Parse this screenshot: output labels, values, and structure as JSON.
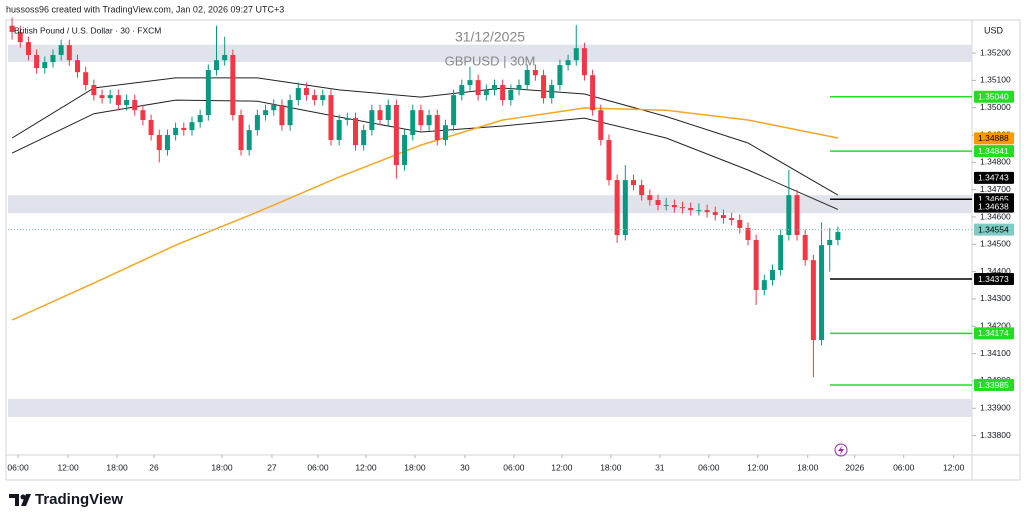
{
  "header": {
    "caption": "hussoss96 created with TradingView.com, Jan 02, 2026 09:27 UTC+3"
  },
  "chart_data": {
    "type": "candlestick",
    "title": "31/12/2025",
    "subtitle": "GBPUSD | 30M",
    "symbol": "British Pound / U.S. Dollar · 30 · FXCM",
    "currency": "USD",
    "up_color": "#089981",
    "down_color": "#f23645",
    "x": [
      0,
      1,
      2,
      3,
      4,
      5,
      6,
      7,
      8,
      9,
      10,
      11,
      12,
      13,
      14,
      15,
      16,
      17,
      18,
      19,
      20,
      21,
      22,
      23,
      24,
      25,
      26,
      27,
      28,
      29,
      30,
      31,
      32,
      33,
      34,
      35,
      36,
      37,
      38,
      39,
      40,
      41,
      42,
      43,
      44,
      45,
      46,
      47,
      48,
      49,
      50,
      51,
      52,
      53,
      54,
      55,
      56,
      57,
      58,
      59,
      60,
      61,
      62,
      63,
      64,
      65,
      66,
      67,
      68,
      69,
      70,
      71,
      72,
      73,
      74,
      75,
      76,
      77,
      78,
      79,
      80,
      81,
      82,
      83,
      84,
      85,
      86,
      87,
      88,
      89,
      90,
      91,
      92,
      93,
      94,
      95,
      96,
      97,
      98,
      99,
      100,
      101
    ],
    "ohlc": [
      [
        1.353,
        1.3533,
        1.3525,
        1.35277
      ],
      [
        1.35277,
        1.353,
        1.3522,
        1.3524
      ],
      [
        1.3524,
        1.3526,
        1.35173,
        1.35193
      ],
      [
        1.35193,
        1.35213,
        1.35125,
        1.35145
      ],
      [
        1.35145,
        1.35187,
        1.35125,
        1.35167
      ],
      [
        1.35167,
        1.35213,
        1.35147,
        1.35193
      ],
      [
        1.35193,
        1.35249,
        1.35173,
        1.35229
      ],
      [
        1.35229,
        1.35249,
        1.35154,
        1.35174
      ],
      [
        1.35174,
        1.35194,
        1.3511,
        1.3513
      ],
      [
        1.3513,
        1.3515,
        1.35063,
        1.35083
      ],
      [
        1.35083,
        1.35103,
        1.35026,
        1.35046
      ],
      [
        1.35046,
        1.35066,
        1.35015,
        1.35035
      ],
      [
        1.35035,
        1.35066,
        1.35015,
        1.35046
      ],
      [
        1.35046,
        1.35066,
        1.3499,
        1.3501
      ],
      [
        1.3501,
        1.35048,
        1.3499,
        1.35028
      ],
      [
        1.35028,
        1.35048,
        1.34971,
        1.34991
      ],
      [
        1.34991,
        1.35011,
        1.34935,
        1.34955
      ],
      [
        1.34955,
        1.34975,
        1.3488,
        1.349
      ],
      [
        1.349,
        1.3492,
        1.348,
        1.34845
      ],
      [
        1.34845,
        1.3492,
        1.34825,
        1.349
      ],
      [
        1.349,
        1.34946,
        1.3488,
        1.34926
      ],
      [
        1.34926,
        1.34946,
        1.34898,
        1.34918
      ],
      [
        1.34918,
        1.34967,
        1.34898,
        1.34947
      ],
      [
        1.34947,
        1.34993,
        1.34927,
        1.34973
      ],
      [
        1.34973,
        1.35158,
        1.34953,
        1.35138
      ],
      [
        1.35138,
        1.353,
        1.35118,
        1.35174
      ],
      [
        1.35174,
        1.3526,
        1.35154,
        1.35193
      ],
      [
        1.35193,
        1.35213,
        1.34953,
        1.34973
      ],
      [
        1.34973,
        1.34993,
        1.34825,
        1.34845
      ],
      [
        1.34845,
        1.34938,
        1.34825,
        1.34918
      ],
      [
        1.34918,
        1.34993,
        1.34898,
        1.34973
      ],
      [
        1.34973,
        1.35011,
        1.34953,
        1.34991
      ],
      [
        1.34991,
        1.3503,
        1.34971,
        1.3501
      ],
      [
        1.3501,
        1.3503,
        1.34916,
        1.34936
      ],
      [
        1.34936,
        1.35048,
        1.34916,
        1.35028
      ],
      [
        1.35028,
        1.35092,
        1.35008,
        1.35072
      ],
      [
        1.35072,
        1.35092,
        1.35026,
        1.35046
      ],
      [
        1.35046,
        1.35066,
        1.35008,
        1.35028
      ],
      [
        1.35028,
        1.35066,
        1.35008,
        1.35046
      ],
      [
        1.35046,
        1.35066,
        1.34862,
        1.34882
      ],
      [
        1.34882,
        1.34975,
        1.34862,
        1.34955
      ],
      [
        1.34955,
        1.34982,
        1.34935,
        1.34962
      ],
      [
        1.34962,
        1.34982,
        1.34843,
        1.34863
      ],
      [
        1.34863,
        1.34938,
        1.34843,
        1.34918
      ],
      [
        1.34918,
        1.35011,
        1.34898,
        1.34991
      ],
      [
        1.34991,
        1.35011,
        1.34935,
        1.34955
      ],
      [
        1.34955,
        1.3503,
        1.34935,
        1.3501
      ],
      [
        1.3501,
        1.3503,
        1.3474,
        1.3479
      ],
      [
        1.3479,
        1.3492,
        1.3477,
        1.349
      ],
      [
        1.349,
        1.35011,
        1.3488,
        1.34991
      ],
      [
        1.34991,
        1.35011,
        1.34916,
        1.34936
      ],
      [
        1.34936,
        1.34993,
        1.34916,
        1.34973
      ],
      [
        1.34973,
        1.34993,
        1.34862,
        1.34882
      ],
      [
        1.34882,
        1.34956,
        1.34862,
        1.34936
      ],
      [
        1.34936,
        1.35066,
        1.34916,
        1.35046
      ],
      [
        1.35046,
        1.35103,
        1.35026,
        1.35083
      ],
      [
        1.35083,
        1.3515,
        1.35063,
        1.35101
      ],
      [
        1.35101,
        1.35121,
        1.35026,
        1.35046
      ],
      [
        1.35046,
        1.35085,
        1.35026,
        1.35065
      ],
      [
        1.35065,
        1.35103,
        1.35045,
        1.35083
      ],
      [
        1.35083,
        1.35103,
        1.35008,
        1.35028
      ],
      [
        1.35028,
        1.35085,
        1.35008,
        1.35065
      ],
      [
        1.35065,
        1.35103,
        1.35045,
        1.35083
      ],
      [
        1.35083,
        1.35158,
        1.35063,
        1.35138
      ],
      [
        1.35138,
        1.35158,
        1.35099,
        1.35119
      ],
      [
        1.35119,
        1.35139,
        1.35015,
        1.35035
      ],
      [
        1.35035,
        1.35103,
        1.35015,
        1.35083
      ],
      [
        1.35083,
        1.35176,
        1.35063,
        1.35156
      ],
      [
        1.35156,
        1.35194,
        1.35136,
        1.35174
      ],
      [
        1.35174,
        1.35303,
        1.35154,
        1.35218
      ],
      [
        1.35218,
        1.35238,
        1.35099,
        1.35119
      ],
      [
        1.35119,
        1.35139,
        1.34971,
        1.34991
      ],
      [
        1.34991,
        1.35011,
        1.34862,
        1.34882
      ],
      [
        1.34882,
        1.34902,
        1.34715,
        1.34735
      ],
      [
        1.34735,
        1.34755,
        1.34505,
        1.34534
      ],
      [
        1.34534,
        1.3479,
        1.34514,
        1.34735
      ],
      [
        1.34735,
        1.34755,
        1.34697,
        1.34717
      ],
      [
        1.34717,
        1.34737,
        1.3466,
        1.3468
      ],
      [
        1.3468,
        1.347,
        1.34642,
        1.34662
      ],
      [
        1.34662,
        1.34682,
        1.34624,
        1.34644
      ],
      [
        1.34644,
        1.3467,
        1.34624,
        1.34644
      ],
      [
        1.34644,
        1.34664,
        1.34616,
        1.34636
      ],
      [
        1.34636,
        1.34656,
        1.34613,
        1.34633
      ],
      [
        1.34633,
        1.34653,
        1.34605,
        1.34625
      ],
      [
        1.34625,
        1.3465,
        1.34605,
        1.34625
      ],
      [
        1.34625,
        1.34645,
        1.34598,
        1.34618
      ],
      [
        1.34618,
        1.34638,
        1.34587,
        1.34607
      ],
      [
        1.34607,
        1.34627,
        1.34576,
        1.34596
      ],
      [
        1.34596,
        1.34616,
        1.34569,
        1.34589
      ],
      [
        1.34589,
        1.34609,
        1.3454,
        1.3456
      ],
      [
        1.3456,
        1.3458,
        1.34496,
        1.34516
      ],
      [
        1.34516,
        1.34536,
        1.34278,
        1.34333
      ],
      [
        1.34333,
        1.34389,
        1.34313,
        1.34369
      ],
      [
        1.34369,
        1.34426,
        1.34349,
        1.34406
      ],
      [
        1.34406,
        1.34554,
        1.34386,
        1.34534
      ],
      [
        1.34534,
        1.34772,
        1.34514,
        1.3468
      ],
      [
        1.3468,
        1.347,
        1.34514,
        1.34534
      ],
      [
        1.34534,
        1.34554,
        1.34422,
        1.34442
      ],
      [
        1.34442,
        1.34462,
        1.34014,
        1.3415
      ],
      [
        1.3415,
        1.3458,
        1.3413,
        1.34497
      ],
      [
        1.34497,
        1.3456,
        1.344,
        1.34516
      ],
      [
        1.34516,
        1.34565,
        1.34496,
        1.34545
      ]
    ],
    "xlim": [
      -0.5,
      117.4
    ],
    "xticks": [
      {
        "value": 0.73,
        "label": "06:00"
      },
      {
        "value": 6.85,
        "label": "12:00"
      },
      {
        "value": 12.84,
        "label": "18:00"
      },
      {
        "value": 17.36,
        "label": "26"
      },
      {
        "value": 25.67,
        "label": "18:00"
      },
      {
        "value": 31.78,
        "label": "27"
      },
      {
        "value": 37.41,
        "label": "06:00"
      },
      {
        "value": 43.28,
        "label": "12:00"
      },
      {
        "value": 49.27,
        "label": "18:00"
      },
      {
        "value": 55.38,
        "label": "30"
      },
      {
        "value": 61.37,
        "label": "06:00"
      },
      {
        "value": 67.24,
        "label": "12:00"
      },
      {
        "value": 73.23,
        "label": "18:00"
      },
      {
        "value": 79.22,
        "label": "31"
      },
      {
        "value": 85.21,
        "label": "06:00"
      },
      {
        "value": 91.2,
        "label": "12:00"
      },
      {
        "value": 97.31,
        "label": "18:00"
      },
      {
        "value": 103.06,
        "label": "2026"
      },
      {
        "value": 109.05,
        "label": "06:00"
      },
      {
        "value": 115.16,
        "label": "12:00"
      }
    ],
    "ylim": [
      1.33729,
      1.35321
    ],
    "yticks": [
      {
        "value": 1.352,
        "label": "1.35200"
      },
      {
        "value": 1.351,
        "label": "1.35100"
      },
      {
        "value": 1.35,
        "label": "1.35000"
      },
      {
        "value": 1.349,
        "label": "1.34900"
      },
      {
        "value": 1.348,
        "label": "1.34800"
      },
      {
        "value": 1.347,
        "label": "1.34700"
      },
      {
        "value": 1.346,
        "label": "1.34600"
      },
      {
        "value": 1.345,
        "label": "1.34500"
      },
      {
        "value": 1.344,
        "label": "1.34400"
      },
      {
        "value": 1.343,
        "label": "1.34300"
      },
      {
        "value": 1.342,
        "label": "1.34200"
      },
      {
        "value": 1.341,
        "label": "1.34100"
      },
      {
        "value": 1.34,
        "label": "1.34000"
      },
      {
        "value": 1.339,
        "label": "1.33900"
      },
      {
        "value": 1.338,
        "label": "1.33800"
      }
    ],
    "overlays": [
      {
        "color": "#222222",
        "x": [
          0,
          10,
          20,
          30,
          40,
          50,
          60,
          70,
          80,
          90,
          101
        ],
        "values": [
          1.34889,
          1.35072,
          1.35109,
          1.35109,
          1.35065,
          1.35039,
          1.35072,
          1.3505,
          1.34968,
          1.34871,
          1.3468
        ]
      },
      {
        "color": "#222222",
        "x": [
          0,
          10,
          20,
          30,
          40,
          50,
          60,
          70,
          80,
          90,
          101
        ],
        "values": [
          1.34834,
          1.34978,
          1.35028,
          1.35024,
          1.34966,
          1.34911,
          1.34933,
          1.34962,
          1.34889,
          1.34772,
          1.34628
        ]
      },
      {
        "color": "#f5a623",
        "x": [
          0,
          10,
          20,
          30,
          40,
          50,
          60,
          70,
          80,
          90,
          101
        ],
        "values": [
          1.34223,
          1.34358,
          1.34497,
          1.34618,
          1.34746,
          1.34863,
          1.34955,
          1.34999,
          1.34991,
          1.34955,
          1.34889
        ]
      }
    ],
    "zones": [
      [
        1.35231,
        1.35167
      ],
      [
        1.3468,
        1.34614
      ],
      [
        1.33934,
        1.33868
      ]
    ],
    "levels": [
      {
        "value": 1.3504,
        "label": "1.35040",
        "color": "#22dd22",
        "line": "solid"
      },
      {
        "value": 1.34888,
        "color": "#ff9800"
      },
      {
        "value": 1.34841,
        "color": "#22dd22",
        "line": "solid"
      },
      {
        "value": 1.34743,
        "color": "#000000"
      },
      {
        "value": 1.34665,
        "color": "#000000",
        "line": "solid"
      },
      {
        "value": 1.34638,
        "color": "#000000"
      },
      {
        "value": 1.34554,
        "color": "#80cbc4",
        "line": "dotted"
      },
      {
        "value": 1.34373,
        "color": "#000000",
        "line": "solid"
      },
      {
        "value": 1.34174,
        "color": "#22dd22",
        "line": "solid"
      },
      {
        "value": 1.33985,
        "color": "#22dd22",
        "line": "solid"
      }
    ]
  },
  "footer": {
    "brand": "TradingView"
  }
}
